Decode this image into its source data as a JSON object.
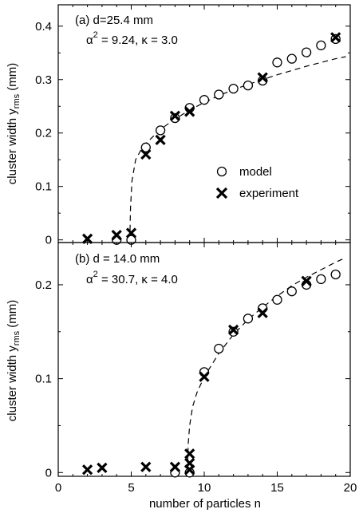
{
  "chart_data": [
    {
      "type": "scatter",
      "panel_label": "(a) d=25.4 mm",
      "params": {
        "alpha_sq": "α² = 9.24",
        "kappa": "κ = 3.0",
        "alpha_sym": "α",
        "sup": "2",
        "alpha_rest": " = 9.24, ",
        "kappa_sym": "κ",
        "kappa_rest": " = 3.0"
      },
      "ylabel": "cluster width y",
      "ylabel_sub": "rms",
      "ylabel_unit": " (mm)",
      "xlim": [
        0,
        20
      ],
      "ylim": [
        -0.005,
        0.44
      ],
      "yticks": [
        0,
        0.1,
        0.2,
        0.3,
        0.4
      ],
      "ytick_labels": [
        "0",
        "0.1",
        "0.2",
        "0.3",
        "0.4"
      ],
      "series": [
        {
          "name": "model",
          "marker": "circle",
          "x": [
            4,
            5,
            6,
            7,
            8,
            9,
            10,
            11,
            12,
            13,
            14,
            15,
            16,
            17,
            18,
            19
          ],
          "y": [
            0.0,
            0.0,
            0.173,
            0.205,
            0.228,
            0.247,
            0.262,
            0.272,
            0.283,
            0.289,
            0.298,
            0.332,
            0.339,
            0.351,
            0.364,
            0.376
          ]
        },
        {
          "name": "experiment",
          "marker": "x",
          "x": [
            2,
            4,
            5,
            6,
            7,
            8,
            9,
            14,
            19
          ],
          "y": [
            0.002,
            0.009,
            0.013,
            0.16,
            0.187,
            0.232,
            0.24,
            0.304,
            0.379
          ]
        }
      ],
      "fit_curve": {
        "style": "dashed",
        "x_onset": 4.9,
        "y_at_x5_2": 0.12,
        "points": [
          [
            4.9,
            0.0
          ],
          [
            4.95,
            0.06
          ],
          [
            5.05,
            0.11
          ],
          [
            5.3,
            0.15
          ],
          [
            5.7,
            0.17
          ],
          [
            6,
            0.18
          ],
          [
            7,
            0.207
          ],
          [
            8,
            0.226
          ],
          [
            9,
            0.243
          ],
          [
            10,
            0.257
          ],
          [
            11,
            0.27
          ],
          [
            12,
            0.281
          ],
          [
            13,
            0.291
          ],
          [
            14,
            0.3
          ],
          [
            15,
            0.309
          ],
          [
            16,
            0.317
          ],
          [
            17,
            0.325
          ],
          [
            18,
            0.332
          ],
          [
            19,
            0.339
          ],
          [
            19.7,
            0.343
          ]
        ]
      }
    },
    {
      "type": "scatter",
      "panel_label": "(b) d = 14.0 mm",
      "params": {
        "alpha_sq": "α² = 30.7",
        "kappa": "κ = 4.0",
        "alpha_sym": "α",
        "sup": "2",
        "alpha_rest": " = 30.7, ",
        "kappa_sym": "κ",
        "kappa_rest": " = 4.0"
      },
      "ylabel": "cluster width y",
      "ylabel_sub": "rms",
      "ylabel_unit": " (mm)",
      "xlabel": "number of particles n",
      "xlim": [
        0,
        20
      ],
      "ylim": [
        -0.004,
        0.245
      ],
      "xticks": [
        0,
        5,
        10,
        15,
        20
      ],
      "xtick_labels": [
        "0",
        "5",
        "10",
        "15",
        "20"
      ],
      "yticks": [
        0,
        0.1,
        0.2
      ],
      "ytick_labels": [
        "0",
        "0.1",
        "0.2"
      ],
      "series": [
        {
          "name": "model",
          "marker": "circle",
          "x": [
            8,
            9,
            10,
            11,
            12,
            13,
            14,
            15,
            16,
            17,
            18,
            19
          ],
          "y": [
            0.0,
            0.0,
            0.107,
            0.132,
            0.15,
            0.164,
            0.175,
            0.184,
            0.193,
            0.2,
            0.206,
            0.211
          ]
        },
        {
          "name": "experiment",
          "marker": "x",
          "x": [
            2,
            3,
            6,
            8,
            9,
            9,
            9,
            10,
            12,
            14,
            17
          ],
          "y": [
            0.003,
            0.005,
            0.006,
            0.006,
            0.003,
            0.01,
            0.02,
            0.102,
            0.152,
            0.17,
            0.204
          ]
        }
      ],
      "fit_curve": {
        "style": "dashed",
        "points": [
          [
            8.85,
            0.0
          ],
          [
            8.9,
            0.03
          ],
          [
            9.0,
            0.05
          ],
          [
            9.2,
            0.07
          ],
          [
            9.5,
            0.085
          ],
          [
            10,
            0.102
          ],
          [
            11,
            0.127
          ],
          [
            12,
            0.147
          ],
          [
            13,
            0.163
          ],
          [
            14,
            0.176
          ],
          [
            15,
            0.188
          ],
          [
            16,
            0.199
          ],
          [
            17,
            0.208
          ],
          [
            18,
            0.216
          ],
          [
            19,
            0.224
          ],
          [
            19.7,
            0.229
          ]
        ]
      }
    }
  ],
  "legend": {
    "items": [
      "model",
      "experiment"
    ],
    "placement": "lower-right of panel (a)"
  }
}
